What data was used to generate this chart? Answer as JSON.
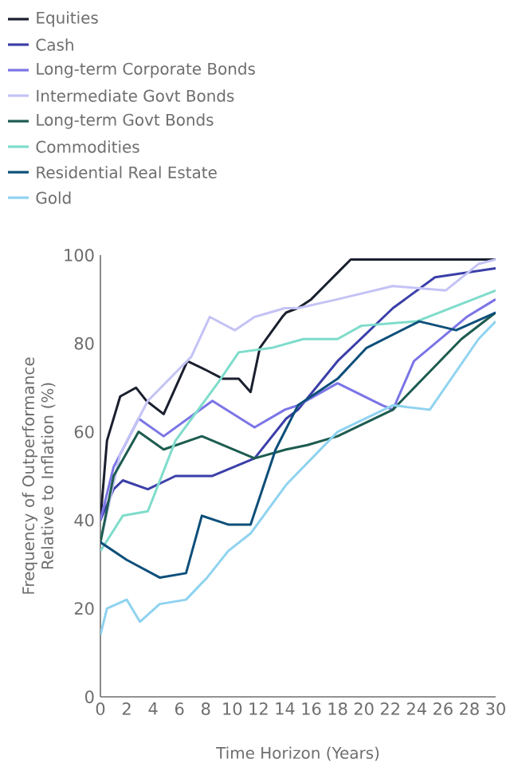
{
  "chart_data": {
    "type": "line",
    "xlabel": "Time Horizon (Years)",
    "ylabel": "Frequency of Outperformance Relative to Inflation (%)",
    "xlim": [
      0,
      30
    ],
    "ylim": [
      0,
      100
    ],
    "xticks": [
      0,
      2,
      4,
      6,
      8,
      10,
      12,
      14,
      16,
      18,
      20,
      22,
      24,
      26,
      28,
      30
    ],
    "yticks": [
      0,
      20,
      40,
      60,
      80,
      100
    ],
    "grid": false,
    "legend": "top",
    "marker": "none",
    "line_style": "solid",
    "series": [
      {
        "name": "Equities",
        "color": "#1a1f2e",
        "x": [
          0,
          0.5,
          1.5,
          2.7,
          3.5,
          4.8,
          6.6,
          8,
          9.3,
          10.5,
          11.4,
          12.1,
          13.8,
          14.1,
          15,
          16,
          17,
          18,
          19,
          20,
          25,
          30
        ],
        "values": [
          40,
          58,
          68,
          70,
          67,
          64,
          76,
          74,
          72,
          72,
          69,
          79,
          86,
          87,
          88,
          90,
          93,
          96,
          99,
          99,
          99,
          99
        ]
      },
      {
        "name": "Cash",
        "color": "#3b3fa8",
        "x": [
          0,
          1,
          1.7,
          3.6,
          5.7,
          8.5,
          11.7,
          14.1,
          15,
          18,
          22.2,
          25.4,
          30
        ],
        "values": [
          40,
          47,
          49,
          47,
          50,
          50,
          54,
          63,
          65,
          76,
          88,
          95,
          97
        ]
      },
      {
        "name": "Long-term Corporate Bonds",
        "color": "#7b75e6",
        "x": [
          0,
          1,
          2.9,
          4.8,
          8.5,
          11.7,
          14,
          15,
          18,
          21.4,
          22.2,
          23.8,
          27.8,
          30
        ],
        "values": [
          40,
          52,
          63,
          59,
          67,
          61,
          65,
          66,
          71,
          66,
          65,
          76,
          86,
          90
        ]
      },
      {
        "name": "Intermediate Govt Bonds",
        "color": "#c4c3f5",
        "x": [
          0,
          1.5,
          3.6,
          6.9,
          8.3,
          10.2,
          11.7,
          14,
          15,
          18,
          22.2,
          26.2,
          28.7,
          30
        ],
        "values": [
          35,
          55,
          67,
          77,
          86,
          83,
          86,
          88,
          88,
          90,
          93,
          92,
          98,
          99
        ]
      },
      {
        "name": "Long-term Govt Bonds",
        "color": "#1d5c50",
        "x": [
          0,
          1,
          2.9,
          4.8,
          7.7,
          11.7,
          14.1,
          15.7,
          18,
          22.2,
          27.4,
          30
        ],
        "values": [
          35,
          50,
          60,
          56,
          59,
          54,
          56,
          57,
          59,
          65,
          81,
          87
        ]
      },
      {
        "name": "Commodities",
        "color": "#7fdccb",
        "x": [
          0,
          1.7,
          3.6,
          5.7,
          8.9,
          10.5,
          13,
          15.4,
          18,
          19.8,
          24,
          30
        ],
        "values": [
          33,
          41,
          42,
          58,
          71,
          78,
          79,
          81,
          81,
          84,
          85,
          92
        ]
      },
      {
        "name": "Residential Real Estate",
        "color": "#0d4f7a",
        "x": [
          0,
          2,
          4.5,
          6.5,
          7.7,
          9.7,
          11.4,
          13.3,
          15,
          18,
          20.2,
          24.2,
          27,
          30
        ],
        "values": [
          35,
          31,
          27,
          28,
          41,
          39,
          39,
          56,
          66,
          72,
          79,
          85,
          83,
          87
        ]
      },
      {
        "name": "Gold",
        "color": "#8fd3f0",
        "x": [
          0,
          0.5,
          2,
          3,
          4.5,
          6.5,
          8.1,
          9.7,
          11.4,
          14.1,
          18,
          22.2,
          25,
          28.7,
          30
        ],
        "values": [
          14,
          20,
          22,
          17,
          21,
          22,
          27,
          33,
          37,
          48,
          60,
          66,
          65,
          81,
          85
        ]
      }
    ]
  }
}
